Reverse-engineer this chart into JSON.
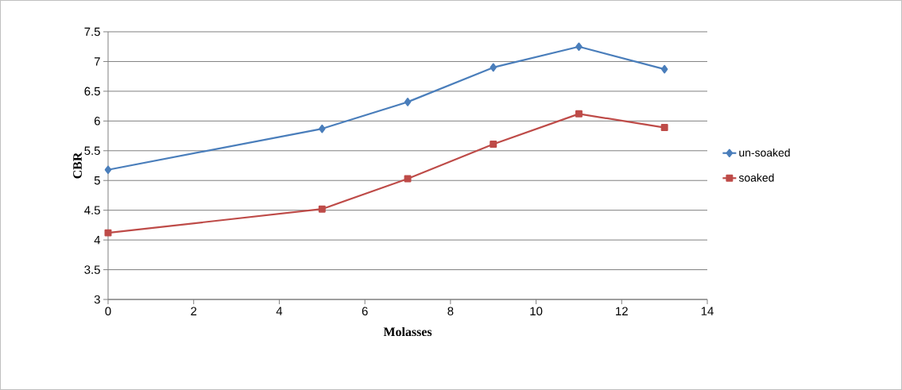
{
  "chart_data": {
    "type": "line",
    "xlabel": "Molasses",
    "ylabel": "CBR",
    "x": [
      0,
      5,
      7,
      9,
      11,
      13
    ],
    "series": [
      {
        "name": "un-soaked",
        "color": "#4a7ebb",
        "marker": "diamond",
        "values": [
          5.18,
          5.87,
          6.32,
          6.9,
          7.25,
          6.87
        ]
      },
      {
        "name": "soaked",
        "color": "#be4b48",
        "marker": "square",
        "values": [
          4.12,
          4.52,
          5.03,
          5.61,
          6.12,
          5.89
        ]
      }
    ],
    "xlim": [
      0,
      14
    ],
    "xticks": [
      0,
      2,
      4,
      6,
      8,
      10,
      12,
      14
    ],
    "ylim": [
      3,
      7.5
    ],
    "yticks": [
      3,
      3.5,
      4,
      4.5,
      5,
      5.5,
      6,
      6.5,
      7,
      7.5
    ],
    "grid": "y",
    "legend": "right",
    "line_style": "solid"
  }
}
